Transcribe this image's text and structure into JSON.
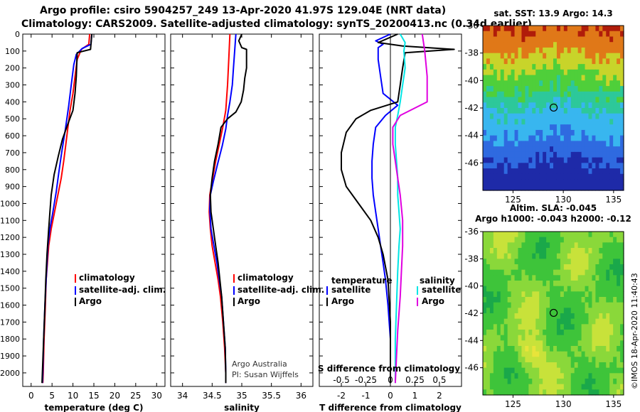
{
  "header": {
    "line1": "Argo profile: csiro 5904257_249 13-Apr-2020 41.97S 129.04E (NRT data)",
    "line2": "Climatology: CARS2009. Satellite-adjusted climatology: synTS_20200413.nc (0.34d earlier)"
  },
  "footer": {
    "credit": "©IMOS 18-Apr-2020 11:40:43"
  },
  "colors": {
    "climatology": "#ff0000",
    "satellite": "#0000ff",
    "argo": "#000000",
    "sal_sat": "#00e5e5",
    "sal_argo": "#e000e0"
  },
  "chart_data": [
    {
      "type": "line",
      "name": "temperature-profile",
      "xlabel": "temperature (deg C)",
      "ylabel": "depth",
      "xlim": [
        -2,
        32
      ],
      "ylim": [
        0,
        2080
      ],
      "xticks": [
        "0",
        "5",
        "10",
        "15",
        "20",
        "25",
        "30"
      ],
      "yticks": [
        "0",
        "100",
        "200",
        "300",
        "400",
        "500",
        "600",
        "700",
        "800",
        "900",
        "1000",
        "1100",
        "1200",
        "1300",
        "1400",
        "1500",
        "1600",
        "1700",
        "1800",
        "1900",
        "2000"
      ],
      "legend": [
        "climatology",
        "satellite-adj. clim.",
        "Argo"
      ],
      "series": [
        {
          "name": "climatology",
          "color": "#ff0000",
          "points": [
            [
              14.0,
              0
            ],
            [
              13.8,
              60
            ],
            [
              12.0,
              90
            ],
            [
              11.0,
              150
            ],
            [
              10.5,
              250
            ],
            [
              10.0,
              350
            ],
            [
              9.3,
              450
            ],
            [
              8.8,
              550
            ],
            [
              8.3,
              650
            ],
            [
              7.8,
              750
            ],
            [
              7.2,
              850
            ],
            [
              6.4,
              950
            ],
            [
              5.6,
              1050
            ],
            [
              4.8,
              1150
            ],
            [
              4.2,
              1250
            ],
            [
              3.9,
              1350
            ],
            [
              3.6,
              1450
            ],
            [
              3.4,
              1600
            ],
            [
              3.1,
              1800
            ],
            [
              2.9,
              2000
            ],
            [
              2.8,
              2060
            ]
          ]
        },
        {
          "name": "satellite-adj. clim.",
          "color": "#0000ff",
          "points": [
            [
              14.5,
              0
            ],
            [
              14.3,
              60
            ],
            [
              12.2,
              85
            ],
            [
              10.8,
              120
            ],
            [
              10.2,
              180
            ],
            [
              9.6,
              300
            ],
            [
              9.0,
              420
            ],
            [
              8.2,
              560
            ],
            [
              7.3,
              700
            ],
            [
              6.6,
              820
            ],
            [
              6.0,
              930
            ],
            [
              5.2,
              1050
            ],
            [
              4.5,
              1150
            ],
            [
              4.0,
              1250
            ],
            [
              3.8,
              1350
            ],
            [
              3.6,
              1450
            ],
            [
              3.3,
              1600
            ],
            [
              3.0,
              1800
            ],
            [
              2.8,
              2000
            ],
            [
              2.7,
              2060
            ]
          ]
        },
        {
          "name": "Argo",
          "color": "#000000",
          "points": [
            [
              14.5,
              0
            ],
            [
              14.2,
              90
            ],
            [
              11.0,
              110
            ],
            [
              10.8,
              250
            ],
            [
              10.5,
              350
            ],
            [
              10.0,
              450
            ],
            [
              8.8,
              530
            ],
            [
              7.5,
              620
            ],
            [
              6.5,
              720
            ],
            [
              5.5,
              830
            ],
            [
              4.8,
              950
            ],
            [
              4.5,
              1050
            ],
            [
              4.2,
              1150
            ],
            [
              3.8,
              1300
            ],
            [
              3.5,
              1450
            ],
            [
              3.3,
              1600
            ],
            [
              3.0,
              1800
            ],
            [
              2.7,
              2000
            ],
            [
              2.6,
              2060
            ]
          ]
        }
      ]
    },
    {
      "type": "line",
      "name": "salinity-profile",
      "xlabel": "salinity",
      "xlim": [
        33.8,
        36.2
      ],
      "ylim": [
        0,
        2080
      ],
      "xticks": [
        "34",
        "34.5",
        "35",
        "35.5",
        "36"
      ],
      "legend": [
        "climatology",
        "satellite-adj. clim.",
        "Argo"
      ],
      "annotation": [
        "Argo Australia",
        "PI: Susan Wijffels"
      ],
      "series": [
        {
          "name": "climatology",
          "color": "#ff0000",
          "points": [
            [
              34.8,
              0
            ],
            [
              34.78,
              150
            ],
            [
              34.76,
              300
            ],
            [
              34.73,
              450
            ],
            [
              34.68,
              550
            ],
            [
              34.62,
              650
            ],
            [
              34.56,
              750
            ],
            [
              34.5,
              870
            ],
            [
              34.46,
              950
            ],
            [
              34.45,
              1050
            ],
            [
              34.47,
              1150
            ],
            [
              34.5,
              1250
            ],
            [
              34.55,
              1350
            ],
            [
              34.6,
              1450
            ],
            [
              34.64,
              1550
            ],
            [
              34.68,
              1700
            ],
            [
              34.71,
              1850
            ],
            [
              34.73,
              2000
            ],
            [
              34.73,
              2060
            ]
          ]
        },
        {
          "name": "satellite-adj. clim.",
          "color": "#0000ff",
          "points": [
            [
              34.9,
              0
            ],
            [
              34.88,
              100
            ],
            [
              34.86,
              200
            ],
            [
              34.84,
              300
            ],
            [
              34.8,
              400
            ],
            [
              34.76,
              480
            ],
            [
              34.73,
              560
            ],
            [
              34.67,
              660
            ],
            [
              34.59,
              770
            ],
            [
              34.52,
              870
            ],
            [
              34.47,
              950
            ],
            [
              34.46,
              1030
            ],
            [
              34.48,
              1150
            ],
            [
              34.53,
              1250
            ],
            [
              34.58,
              1350
            ],
            [
              34.62,
              1450
            ],
            [
              34.66,
              1550
            ],
            [
              34.69,
              1700
            ],
            [
              34.72,
              1850
            ],
            [
              34.73,
              2000
            ],
            [
              34.73,
              2060
            ]
          ]
        },
        {
          "name": "Argo",
          "color": "#000000",
          "points": [
            [
              35.0,
              0
            ],
            [
              34.95,
              40
            ],
            [
              35.0,
              80
            ],
            [
              35.08,
              90
            ],
            [
              35.08,
              200
            ],
            [
              35.05,
              260
            ],
            [
              35.03,
              330
            ],
            [
              34.99,
              400
            ],
            [
              34.9,
              460
            ],
            [
              34.76,
              500
            ],
            [
              34.65,
              550
            ],
            [
              34.6,
              650
            ],
            [
              34.54,
              750
            ],
            [
              34.5,
              850
            ],
            [
              34.47,
              950
            ],
            [
              34.48,
              1050
            ],
            [
              34.52,
              1150
            ],
            [
              34.56,
              1250
            ],
            [
              34.6,
              1350
            ],
            [
              34.63,
              1450
            ],
            [
              34.66,
              1550
            ],
            [
              34.69,
              1700
            ],
            [
              34.72,
              1850
            ],
            [
              34.73,
              2000
            ],
            [
              34.73,
              2060
            ]
          ]
        }
      ]
    },
    {
      "type": "line",
      "name": "difference-profile",
      "xlabel": "T difference from climatology",
      "xlabel2": "S difference from climatology",
      "xlim": [
        -2.9,
        2.9
      ],
      "ylim": [
        0,
        2080
      ],
      "xticks": [
        "-2",
        "-1",
        "0",
        "1",
        "2"
      ],
      "xticks_s": [
        "-0.5",
        "-0.25",
        "0",
        "0.25",
        "0.5"
      ],
      "legend_t": {
        "title": "temperature",
        "items": [
          "satellite",
          "Argo"
        ]
      },
      "legend_s": {
        "title": "salinity",
        "items": [
          "satellite",
          "Argo"
        ]
      },
      "series": [
        {
          "name": "T satellite",
          "color": "#0000ff",
          "points": [
            [
              0,
              0
            ],
            [
              -0.6,
              40
            ],
            [
              -0.3,
              60
            ],
            [
              -0.5,
              80
            ],
            [
              -0.5,
              150
            ],
            [
              -0.4,
              250
            ],
            [
              -0.3,
              350
            ],
            [
              0.3,
              420
            ],
            [
              -0.2,
              480
            ],
            [
              -0.6,
              550
            ],
            [
              -0.7,
              650
            ],
            [
              -0.75,
              750
            ],
            [
              -0.75,
              850
            ],
            [
              -0.7,
              950
            ],
            [
              -0.6,
              1050
            ],
            [
              -0.5,
              1150
            ],
            [
              -0.4,
              1250
            ],
            [
              -0.3,
              1350
            ],
            [
              -0.2,
              1450
            ],
            [
              -0.1,
              1600
            ],
            [
              0,
              1800
            ],
            [
              0,
              2060
            ]
          ]
        },
        {
          "name": "T Argo",
          "color": "#000000",
          "points": [
            [
              0.3,
              0
            ],
            [
              -0.5,
              50
            ],
            [
              0.5,
              70
            ],
            [
              2.6,
              90
            ],
            [
              0.6,
              110
            ],
            [
              0.5,
              200
            ],
            [
              0.4,
              300
            ],
            [
              0.3,
              400
            ],
            [
              -0.8,
              450
            ],
            [
              -1.4,
              500
            ],
            [
              -1.8,
              580
            ],
            [
              -2.0,
              700
            ],
            [
              -2.0,
              800
            ],
            [
              -1.8,
              900
            ],
            [
              -1.3,
              1000
            ],
            [
              -0.8,
              1100
            ],
            [
              -0.5,
              1200
            ],
            [
              -0.3,
              1300
            ],
            [
              -0.1,
              1450
            ],
            [
              0,
              1700
            ],
            [
              0,
              2060
            ]
          ]
        },
        {
          "name": "S satellite",
          "color": "#00e5e5",
          "points": [
            [
              0.4,
              0
            ],
            [
              0.6,
              50
            ],
            [
              0.55,
              100
            ],
            [
              0.6,
              200
            ],
            [
              0.5,
              300
            ],
            [
              0.4,
              400
            ],
            [
              0.3,
              480
            ],
            [
              0.2,
              550
            ],
            [
              0.2,
              650
            ],
            [
              0.25,
              750
            ],
            [
              0.3,
              850
            ],
            [
              0.3,
              950
            ],
            [
              0.35,
              1050
            ],
            [
              0.4,
              1150
            ],
            [
              0.35,
              1250
            ],
            [
              0.3,
              1400
            ],
            [
              0.25,
              1600
            ],
            [
              0.2,
              1800
            ],
            [
              0.2,
              2060
            ]
          ]
        },
        {
          "name": "S Argo",
          "color": "#e000e0",
          "points": [
            [
              1.3,
              0
            ],
            [
              1.4,
              100
            ],
            [
              1.5,
              250
            ],
            [
              1.5,
              400
            ],
            [
              0.4,
              480
            ],
            [
              0.1,
              550
            ],
            [
              0.1,
              650
            ],
            [
              0.2,
              750
            ],
            [
              0.3,
              850
            ],
            [
              0.4,
              950
            ],
            [
              0.5,
              1100
            ],
            [
              0.5,
              1250
            ],
            [
              0.45,
              1400
            ],
            [
              0.4,
              1550
            ],
            [
              0.3,
              1750
            ],
            [
              0.25,
              1900
            ],
            [
              0.2,
              2060
            ]
          ]
        }
      ]
    },
    {
      "type": "heatmap",
      "name": "sst-map",
      "title": "sat. SST: 13.9 Argo: 14.3",
      "xlim": [
        122,
        136
      ],
      "ylim": [
        -48,
        -36
      ],
      "xticks": [
        "125",
        "130",
        "135"
      ],
      "yticks": [
        "-36",
        "-38",
        "-40",
        "-42",
        "-44",
        "-46"
      ],
      "marker": {
        "lon": 129.04,
        "lat": -41.97
      }
    },
    {
      "type": "heatmap",
      "name": "sla-map",
      "title": "Altim. SLA: -0.045",
      "subtitle": "Argo h1000: -0.043 h2000: -0.12",
      "xlim": [
        122,
        136
      ],
      "ylim": [
        -48,
        -36
      ],
      "xticks": [
        "125",
        "130",
        "135"
      ],
      "yticks": [
        "-36",
        "-38",
        "-40",
        "-42",
        "-44",
        "-46"
      ],
      "marker": {
        "lon": 129.04,
        "lat": -41.97
      }
    }
  ]
}
